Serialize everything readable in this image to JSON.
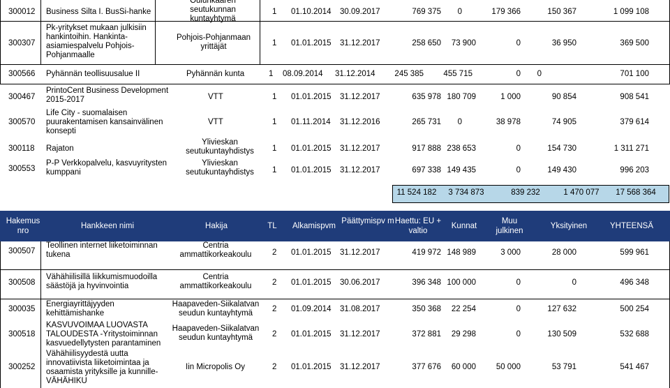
{
  "top_rows": [
    {
      "nro": "300012",
      "name": "Business Silta I. BusSi-hanke",
      "hakija": "Oulunkaaren seutukunnan kuntayhtymä",
      "tl": "1",
      "alku": "01.10.2014",
      "loppu": "30.09.2017",
      "eu": "769 375",
      "kunnat": "0",
      "muu": "179 366",
      "yks": "150 367",
      "yht": "1 099 108"
    },
    {
      "nro": "300307",
      "name": "Pk-yritykset mukaan julkisiin hankintoihin. Hankinta-asiamiespalvelu Pohjois-Pohjanmaalle",
      "hakija": "Pohjois-Pohjanmaan yrittäjät",
      "tl": "1",
      "alku": "01.01.2015",
      "loppu": "31.12.2017",
      "eu": "258 650",
      "kunnat": "73 900",
      "muu": "0",
      "yks": "36 950",
      "yht": "369 500"
    },
    {
      "nro": "300566",
      "name": "Pyhännän teollisuusalue II",
      "hakija": "Pyhännän kunta",
      "tl": "1",
      "alku": "08.09.2014",
      "loppu": "31.12.2014",
      "eu": "245 385",
      "kunnat": "455 715",
      "muu": "0",
      "yks": "0",
      "yht": "701 100"
    },
    {
      "nro": "300467",
      "name": "PrintoCent Business Development 2015-2017",
      "hakija": "VTT",
      "tl": "1",
      "alku": "01.01.2015",
      "loppu": "31.12.2017",
      "eu": "635 978",
      "kunnat": "180 709",
      "muu": "1 000",
      "yks": "90 854",
      "yht": "908 541"
    },
    {
      "nro": "300570",
      "name": "Life City - suomalaisen puurakentamisen kansainvälinen konsepti",
      "hakija": "VTT",
      "tl": "1",
      "alku": "01.11.2014",
      "loppu": "31.12.2016",
      "eu": "265 731",
      "kunnat": "0",
      "muu": "38 978",
      "yks": "74 905",
      "yht": "379 614"
    },
    {
      "nro": "300118",
      "name": "Rajaton",
      "hakija": "Ylivieskan seutukuntayhdistys",
      "tl": "1",
      "alku": "01.01.2015",
      "loppu": "31.12.2017",
      "eu": "917 888",
      "kunnat": "238 653",
      "muu": "0",
      "yks": "154 730",
      "yht": "1 311 271"
    },
    {
      "nro": "300553",
      "name": "P-P Verkkopalvelu, kasvuyritysten kumppani",
      "hakija": "Ylivieskan seutukuntayhdistys",
      "tl": "1",
      "alku": "01.01.2015",
      "loppu": "31.12.2017",
      "eu": "697 338",
      "kunnat": "149 435",
      "muu": "0",
      "yks": "149 430",
      "yht": "996 203"
    }
  ],
  "totals": {
    "eu": "11 524 182",
    "kunnat": "3 734 873",
    "muu": "839 232",
    "yks": "1 470 077",
    "yht": "17 568 364"
  },
  "header": {
    "nro": "Hakemus nro",
    "name": "Hankkeen nimi",
    "hakija": "Hakija",
    "tl": "TL",
    "alku": "Alkamispvm",
    "loppu": "Päättymispv m",
    "eu": "Haettu: EU + valtio",
    "kunnat": "Kunnat",
    "muu": "Muu julkinen",
    "yks": "Yksityinen",
    "yht": "YHTEENSÄ"
  },
  "bottom_rows": [
    {
      "nro": "300507",
      "name": "Teollinen internet liiketoiminnan tukena",
      "hakija": "Centria ammattikorkeakoulu",
      "tl": "2",
      "alku": "01.01.2015",
      "loppu": "31.12.2017",
      "eu": "419 972",
      "kunnat": "148 989",
      "muu": "3 000",
      "yks": "28 000",
      "yht": "599 961"
    },
    {
      "nro": "300508",
      "name": "Vähähiilisillä liikkumismuodoilla säästöjä ja hyvinvointia",
      "hakija": "Centria ammattikorkeakoulu",
      "tl": "2",
      "alku": "01.01.2015",
      "loppu": "30.06.2017",
      "eu": "396 348",
      "kunnat": "100 000",
      "muu": "0",
      "yks": "0",
      "yht": "496 348"
    },
    {
      "nro": "300035",
      "name": "Energiayrittäjyyden kehittämishanke",
      "hakija": "Haapaveden-Siikalatvan seudun kuntayhtymä",
      "tl": "2",
      "alku": "01.09.2014",
      "loppu": "31.08.2017",
      "eu": "350 368",
      "kunnat": "22 254",
      "muu": "0",
      "yks": "127 632",
      "yht": "500 254"
    },
    {
      "nro": "300518",
      "name": "KASVUVOIMAA LUOVASTA TALOUDESTA -Yritystoiminnan kasvuedellytysten parantaminen",
      "hakija": "Haapaveden-Siikalatvan seudun kuntayhtymä",
      "tl": "2",
      "alku": "01.01.2015",
      "loppu": "31.12.2017",
      "eu": "372 881",
      "kunnat": "29 298",
      "muu": "0",
      "yks": "130 509",
      "yht": "532 688"
    },
    {
      "nro": "300252",
      "name": "Vähähiilisyydestä uutta innovatiivista liiketoimintaa ja osaamista yrityksille ja kunnille-VÄHÄHIKU",
      "hakija": "Iin Micropolis Oy",
      "tl": "2",
      "alku": "01.01.2015",
      "loppu": "31.12.2017",
      "eu": "377 676",
      "kunnat": "60 000",
      "muu": "50 000",
      "yks": "53 791",
      "yht": "541 467"
    }
  ]
}
